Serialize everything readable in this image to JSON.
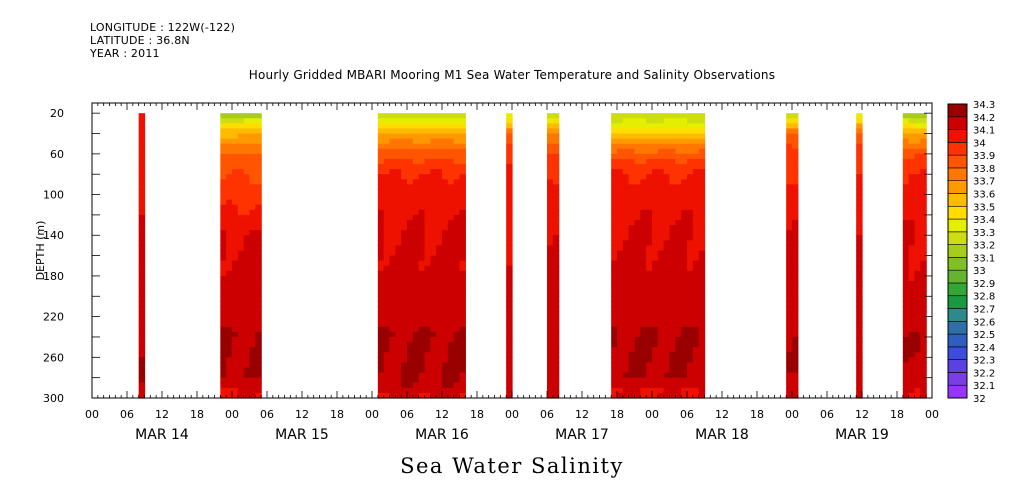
{
  "header": {
    "longitude": "LONGITUDE : 122W(-122)",
    "latitude": "LATITUDE : 36.8N",
    "year": "YEAR : 2011"
  },
  "title": "Hourly Gridded MBARI Mooring M1 Sea Water Temperature and Salinity Observations",
  "bottom_title": "Sea Water Salinity",
  "chart_data": {
    "type": "heatmap",
    "title": "Hourly Gridded MBARI Mooring M1 Sea Water Temperature and Salinity Observations",
    "xlabel": "",
    "ylabel": "DEPTH (m)",
    "x_unit": "hours from MAR 14 00",
    "xlim": [
      0,
      144
    ],
    "ylim": [
      300,
      10
    ],
    "y_reversed": true,
    "y_ticks": [
      20,
      60,
      100,
      140,
      180,
      220,
      260,
      300
    ],
    "x_hour_labels": [
      "00",
      "06",
      "12",
      "18",
      "00",
      "06",
      "12",
      "18",
      "00",
      "06",
      "12",
      "18",
      "00",
      "06",
      "12",
      "18",
      "00",
      "06",
      "12",
      "18",
      "00",
      "06",
      "12",
      "18",
      "00"
    ],
    "date_labels": [
      "MAR 14",
      "MAR 15",
      "MAR 16",
      "MAR 17",
      "MAR 18",
      "MAR 19"
    ],
    "colorbar": {
      "levels": [
        32,
        32.1,
        32.2,
        32.3,
        32.4,
        32.5,
        32.6,
        32.7,
        32.8,
        32.9,
        33,
        33.1,
        33.2,
        33.3,
        33.4,
        33.5,
        33.6,
        33.7,
        33.8,
        33.9,
        34,
        34.1,
        34.2,
        34.3
      ],
      "colors": [
        "#e600e6",
        "#9933ff",
        "#7a3de6",
        "#5c40e0",
        "#3d4dd9",
        "#2e5fbf",
        "#2e6fa8",
        "#2e8a8a",
        "#1a9940",
        "#33a633",
        "#66b333",
        "#80c026",
        "#a6cc1f",
        "#ccdd11",
        "#e6ee00",
        "#ffdd00",
        "#ffbb00",
        "#ff9900",
        "#ff7700",
        "#ff5500",
        "#ff3300",
        "#ee1100",
        "#cc0000",
        "#990000"
      ]
    },
    "data_segments": [
      {
        "start_hour": 8,
        "end_hour": 9,
        "profile": [
          [
            20,
            34.1
          ],
          [
            60,
            34.15
          ],
          [
            140,
            34.2
          ],
          [
            230,
            34.25
          ],
          [
            280,
            34.3
          ],
          [
            300,
            34.2
          ]
        ]
      },
      {
        "start_hour": 22,
        "end_hour": 29,
        "profile": [
          [
            20,
            33.2
          ],
          [
            35,
            33.6
          ],
          [
            50,
            33.8
          ],
          [
            65,
            33.95
          ],
          [
            80,
            34.0
          ],
          [
            100,
            34.05
          ],
          [
            140,
            34.2
          ],
          [
            225,
            34.25
          ],
          [
            235,
            34.3
          ],
          [
            280,
            34.3
          ],
          [
            290,
            34.2
          ],
          [
            300,
            34.2
          ]
        ]
      },
      {
        "start_hour": 49,
        "end_hour": 64,
        "profile": [
          [
            20,
            33.3
          ],
          [
            35,
            33.6
          ],
          [
            50,
            33.85
          ],
          [
            65,
            34.0
          ],
          [
            80,
            34.1
          ],
          [
            100,
            34.15
          ],
          [
            130,
            34.2
          ],
          [
            225,
            34.25
          ],
          [
            235,
            34.3
          ],
          [
            285,
            34.3
          ],
          [
            300,
            34.2
          ]
        ]
      },
      {
        "start_hour": 71,
        "end_hour": 72,
        "profile": [
          [
            20,
            33.4
          ],
          [
            40,
            33.9
          ],
          [
            60,
            34.05
          ],
          [
            100,
            34.15
          ],
          [
            160,
            34.2
          ],
          [
            240,
            34.25
          ],
          [
            260,
            34.3
          ],
          [
            280,
            34.3
          ],
          [
            300,
            34.2
          ]
        ]
      },
      {
        "start_hour": 78,
        "end_hour": 80,
        "profile": [
          [
            20,
            33.3
          ],
          [
            40,
            33.8
          ],
          [
            60,
            34.0
          ],
          [
            100,
            34.15
          ],
          [
            150,
            34.2
          ],
          [
            240,
            34.25
          ],
          [
            260,
            34.3
          ],
          [
            280,
            34.25
          ],
          [
            300,
            34.2
          ]
        ]
      },
      {
        "start_hour": 89,
        "end_hour": 105,
        "profile": [
          [
            20,
            33.3
          ],
          [
            35,
            33.5
          ],
          [
            50,
            33.8
          ],
          [
            65,
            34.0
          ],
          [
            80,
            34.1
          ],
          [
            100,
            34.15
          ],
          [
            130,
            34.2
          ],
          [
            225,
            34.25
          ],
          [
            235,
            34.3
          ],
          [
            280,
            34.3
          ],
          [
            290,
            34.2
          ],
          [
            300,
            34.2
          ]
        ]
      },
      {
        "start_hour": 119,
        "end_hour": 121,
        "profile": [
          [
            20,
            33.3
          ],
          [
            40,
            33.9
          ],
          [
            60,
            34.05
          ],
          [
            100,
            34.15
          ],
          [
            140,
            34.2
          ],
          [
            230,
            34.25
          ],
          [
            240,
            34.3
          ],
          [
            270,
            34.3
          ],
          [
            285,
            34.2
          ],
          [
            300,
            34.2
          ]
        ]
      },
      {
        "start_hour": 131,
        "end_hour": 132,
        "profile": [
          [
            20,
            33.4
          ],
          [
            40,
            33.9
          ],
          [
            60,
            34.05
          ],
          [
            100,
            34.15
          ],
          [
            140,
            34.2
          ],
          [
            240,
            34.25
          ],
          [
            260,
            34.3
          ],
          [
            280,
            34.25
          ],
          [
            300,
            34.2
          ]
        ]
      },
      {
        "start_hour": 139,
        "end_hour": 143,
        "profile": [
          [
            20,
            33.2
          ],
          [
            40,
            33.7
          ],
          [
            60,
            34.0
          ],
          [
            80,
            34.1
          ],
          [
            100,
            34.15
          ],
          [
            150,
            34.2
          ],
          [
            220,
            34.25
          ],
          [
            250,
            34.3
          ],
          [
            280,
            34.25
          ],
          [
            300,
            34.2
          ]
        ]
      }
    ]
  }
}
